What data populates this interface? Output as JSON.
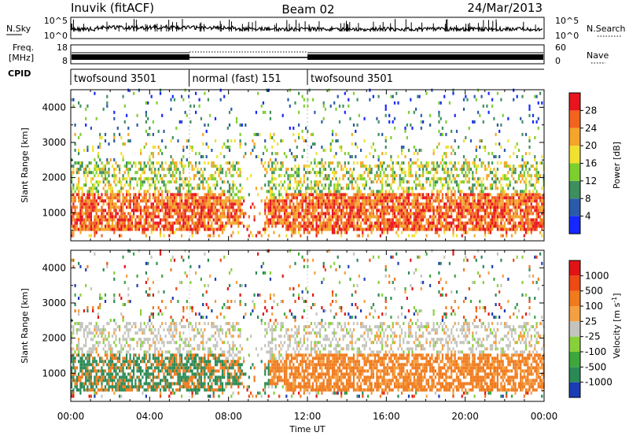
{
  "header": {
    "station": "Inuvik (fitACF)",
    "beam": "Beam 02",
    "date": "24/Mar/2013"
  },
  "labels": {
    "nsky": "N.Sky",
    "nsearch": "N.Search",
    "freq_line1": "Freq.",
    "freq_line2": "[MHz]",
    "nave": "Nave",
    "cpid": "CPID"
  },
  "noise_axis": {
    "left_top": "10^5",
    "left_bottom": "10^0",
    "right_top": "10^5",
    "right_bottom": "10^0"
  },
  "freq_axis": {
    "left_top": "18",
    "left_bottom": "8",
    "right_top": "60",
    "right_bottom": "0"
  },
  "cpid_segments": [
    {
      "name": "twofsound 3501",
      "start_hour": 0,
      "end_hour": 6
    },
    {
      "name": "normal (fast) 151",
      "start_hour": 6,
      "end_hour": 12
    },
    {
      "name": "twofsound 3501",
      "start_hour": 12,
      "end_hour": 24
    }
  ],
  "x_axis": {
    "label": "Time UT",
    "ticks": [
      "00:00",
      "04:00",
      "08:00",
      "12:00",
      "16:00",
      "20:00",
      "00:00"
    ],
    "range_hours": [
      0,
      24
    ]
  },
  "chart_data": [
    {
      "type": "heatmap",
      "panel": "power",
      "ylabel": "Slant Range [km]",
      "yticks": [
        "1000",
        "2000",
        "3000",
        "4000"
      ],
      "ylim": [
        200,
        4500
      ],
      "colorbar": {
        "label": "Power [dB]",
        "ticks": [
          "4",
          "8",
          "12",
          "16",
          "20",
          "24",
          "28"
        ],
        "range": [
          0,
          32
        ],
        "colors": [
          "#1428ff",
          "#2a5aa8",
          "#3d8f5e",
          "#7ccf2e",
          "#f0e030",
          "#f4a52a",
          "#f2641e",
          "#e8141e"
        ]
      }
    },
    {
      "type": "heatmap",
      "panel": "velocity",
      "ylabel": "Slant Range [km]",
      "yticks": [
        "1000",
        "2000",
        "3000",
        "4000"
      ],
      "ylim": [
        200,
        4500
      ],
      "colorbar": {
        "label": "Velocity [m s^-1]",
        "ticks": [
          "1000",
          "500",
          "100",
          "25",
          "-25",
          "-100",
          "-500",
          "-1000"
        ],
        "colors": [
          "#1a3cb4",
          "#2a8a55",
          "#3ca83c",
          "#88d03a",
          "#c4c4be",
          "#f5a040",
          "#f07a1c",
          "#ee4a14",
          "#e01414"
        ]
      }
    }
  ]
}
